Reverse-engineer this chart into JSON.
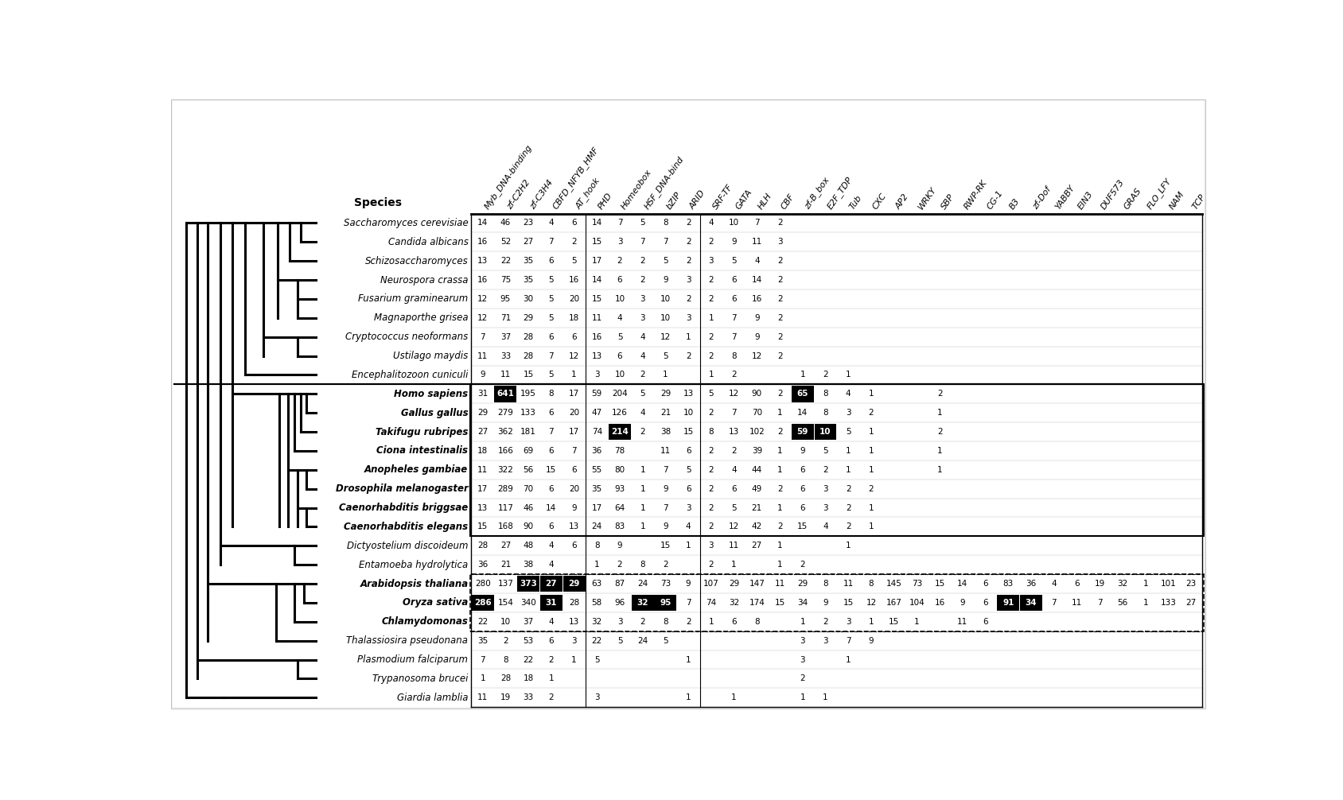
{
  "columns": [
    "Myb_DNA-binding",
    "zf-C2H2",
    "zf-C3H4",
    "CBFD_NFYB_HMF",
    "AT_hook",
    "PHD",
    "Homeobox",
    "HSF_DNA-bind",
    "bZIP",
    "ARID",
    "SRF-TF",
    "GATA",
    "HLH",
    "CBF",
    "zf-B_box",
    "E2F_TDP",
    "Tub",
    "CXC",
    "AP2",
    "WRKY",
    "SBP",
    "RWP-RK",
    "CG-1",
    "B3",
    "zf-Dof",
    "YABBY",
    "EIN3",
    "DUF573",
    "GRAS",
    "FLO_LFY",
    "NAM",
    "TCP"
  ],
  "species": [
    "Saccharomyces cerevisiae",
    "Candida albicans",
    "Schizosaccharomyces",
    "Neurospora crassa",
    "Fusarium graminearum",
    "Magnaporthe grisea",
    "Cryptococcus neoformans",
    "Ustilago maydis",
    "Encephalitozoon cuniculi",
    "Homo sapiens",
    "Gallus gallus",
    "Takifugu rubripes",
    "Ciona intestinalis",
    "Anopheles gambiae",
    "Drosophila melanogaster",
    "Caenorhabditis briggsae",
    "Caenorhabditis elegans",
    "Dictyostelium discoideum",
    "Entamoeba hydrolytica",
    "Arabidopsis thaliana",
    "Oryza sativa",
    "Chlamydomonas",
    "Thalassiosira pseudonana",
    "Plasmodium falciparum",
    "Trypanosoma brucei",
    "Giardia lamblia"
  ],
  "data": {
    "Saccharomyces cerevisiae": [
      14,
      46,
      23,
      4,
      6,
      14,
      7,
      5,
      8,
      2,
      4,
      10,
      7,
      2,
      "",
      "",
      "",
      "",
      "",
      "",
      "",
      "",
      "",
      "",
      "",
      "",
      "",
      "",
      "",
      "",
      "",
      ""
    ],
    "Candida albicans": [
      16,
      52,
      27,
      7,
      2,
      15,
      3,
      7,
      7,
      2,
      2,
      9,
      11,
      3,
      "",
      "",
      "",
      "",
      "",
      "",
      "",
      "",
      "",
      "",
      "",
      "",
      "",
      "",
      "",
      "",
      "",
      ""
    ],
    "Schizosaccharomyces": [
      13,
      22,
      35,
      6,
      5,
      17,
      2,
      2,
      5,
      2,
      3,
      5,
      4,
      2,
      "",
      "",
      "",
      "",
      "",
      "",
      "",
      "",
      "",
      "",
      "",
      "",
      "",
      "",
      "",
      "",
      "",
      ""
    ],
    "Neurospora crassa": [
      16,
      75,
      35,
      5,
      16,
      14,
      6,
      2,
      9,
      3,
      2,
      6,
      14,
      2,
      "",
      "",
      "",
      "",
      "",
      "",
      "",
      "",
      "",
      "",
      "",
      "",
      "",
      "",
      "",
      "",
      "",
      ""
    ],
    "Fusarium graminearum": [
      12,
      95,
      30,
      5,
      20,
      15,
      10,
      3,
      10,
      2,
      2,
      6,
      16,
      2,
      "",
      "",
      "",
      "",
      "",
      "",
      "",
      "",
      "",
      "",
      "",
      "",
      "",
      "",
      "",
      "",
      "",
      ""
    ],
    "Magnaporthe grisea": [
      12,
      71,
      29,
      5,
      18,
      11,
      4,
      3,
      10,
      3,
      1,
      7,
      9,
      2,
      "",
      "",
      "",
      "",
      "",
      "",
      "",
      "",
      "",
      "",
      "",
      "",
      "",
      "",
      "",
      "",
      "",
      ""
    ],
    "Cryptococcus neoformans": [
      7,
      37,
      28,
      6,
      6,
      16,
      5,
      4,
      12,
      1,
      2,
      7,
      9,
      2,
      "",
      "",
      "",
      "",
      "",
      "",
      "",
      "",
      "",
      "",
      "",
      "",
      "",
      "",
      "",
      "",
      "",
      ""
    ],
    "Ustilago maydis": [
      11,
      33,
      28,
      7,
      12,
      13,
      6,
      4,
      5,
      2,
      2,
      8,
      12,
      2,
      "",
      "",
      "",
      "",
      "",
      "",
      "",
      "",
      "",
      "",
      "",
      "",
      "",
      "",
      "",
      "",
      "",
      ""
    ],
    "Encephalitozoon cuniculi": [
      9,
      11,
      15,
      5,
      1,
      3,
      10,
      2,
      1,
      "",
      1,
      2,
      "",
      "",
      1,
      2,
      1,
      "",
      "",
      "",
      "",
      "",
      "",
      "",
      "",
      "",
      "",
      "",
      "",
      "",
      "",
      ""
    ],
    "Homo sapiens": [
      31,
      "641",
      195,
      8,
      17,
      59,
      204,
      5,
      29,
      13,
      5,
      12,
      90,
      2,
      "65",
      8,
      4,
      1,
      "",
      "",
      2,
      "",
      "",
      "",
      "",
      "",
      "",
      "",
      "",
      "",
      "",
      ""
    ],
    "Gallus gallus": [
      29,
      279,
      133,
      6,
      20,
      47,
      126,
      4,
      21,
      10,
      2,
      7,
      70,
      1,
      14,
      8,
      3,
      2,
      "",
      "",
      1,
      "",
      "",
      "",
      "",
      "",
      "",
      "",
      "",
      "",
      "",
      ""
    ],
    "Takifugu rubripes": [
      27,
      362,
      181,
      7,
      17,
      74,
      "214",
      2,
      38,
      "15",
      8,
      13,
      102,
      2,
      59,
      "10",
      5,
      1,
      "",
      "",
      2,
      "",
      "",
      "",
      "",
      "",
      "",
      "",
      "",
      "",
      "",
      ""
    ],
    "Ciona intestinalis": [
      18,
      166,
      69,
      6,
      7,
      36,
      78,
      "",
      11,
      6,
      2,
      2,
      39,
      1,
      9,
      5,
      1,
      1,
      "",
      "",
      1,
      "",
      "",
      "",
      "",
      "",
      "",
      "",
      "",
      "",
      "",
      ""
    ],
    "Anopheles gambiae": [
      11,
      322,
      56,
      15,
      6,
      55,
      80,
      1,
      7,
      5,
      2,
      4,
      44,
      1,
      6,
      2,
      1,
      1,
      "",
      "",
      1,
      "",
      "",
      "",
      "",
      "",
      "",
      "",
      "",
      "",
      "",
      ""
    ],
    "Drosophila melanogaster": [
      17,
      289,
      70,
      6,
      20,
      35,
      93,
      1,
      9,
      6,
      2,
      6,
      49,
      2,
      6,
      3,
      2,
      2,
      "",
      "",
      "",
      "",
      "",
      "",
      "",
      "",
      "",
      "",
      "",
      "",
      "",
      ""
    ],
    "Caenorhabditis briggsae": [
      13,
      117,
      46,
      14,
      9,
      17,
      64,
      1,
      7,
      3,
      2,
      5,
      21,
      1,
      6,
      3,
      2,
      1,
      "",
      "",
      "",
      "",
      "",
      "",
      "",
      "",
      "",
      "",
      "",
      "",
      "",
      ""
    ],
    "Caenorhabditis elegans": [
      15,
      168,
      90,
      6,
      13,
      24,
      83,
      1,
      9,
      4,
      2,
      12,
      42,
      2,
      15,
      4,
      2,
      1,
      "",
      "",
      "",
      "",
      "",
      "",
      "",
      "",
      "",
      "",
      "",
      "",
      "",
      ""
    ],
    "Dictyostelium discoideum": [
      28,
      27,
      48,
      4,
      6,
      8,
      9,
      "",
      15,
      1,
      3,
      11,
      27,
      1,
      "",
      "",
      1,
      "",
      "",
      "",
      "",
      "",
      "",
      "",
      "",
      "",
      "",
      "",
      "",
      "",
      "",
      ""
    ],
    "Entamoeba hydrolytica": [
      36,
      21,
      38,
      4,
      "",
      1,
      2,
      8,
      2,
      "",
      2,
      1,
      "",
      1,
      2,
      "",
      "",
      "",
      "",
      "",
      "",
      "",
      "",
      "",
      "",
      "",
      "",
      "",
      "",
      "",
      "",
      ""
    ],
    "Arabidopsis thaliana": [
      280,
      137,
      "373",
      27,
      29,
      "63",
      87,
      24,
      73,
      9,
      "107",
      29,
      147,
      11,
      29,
      8,
      11,
      8,
      145,
      73,
      15,
      14,
      6,
      83,
      36,
      4,
      6,
      19,
      32,
      1,
      101,
      23
    ],
    "Oryza sativa": [
      "286",
      154,
      340,
      "31",
      28,
      58,
      96,
      "32",
      "95",
      7,
      74,
      "32",
      "174",
      15,
      34,
      9,
      "15",
      "12",
      167,
      104,
      16,
      9,
      "6",
      "91",
      34,
      7,
      11,
      7,
      56,
      1,
      133,
      27
    ],
    "Chlamydomonas": [
      22,
      10,
      37,
      4,
      13,
      32,
      3,
      2,
      8,
      2,
      1,
      6,
      8,
      "",
      1,
      2,
      3,
      1,
      15,
      1,
      "",
      11,
      6,
      "",
      "",
      "",
      "",
      "",
      "",
      "",
      "",
      ""
    ],
    "Thalassiosira pseudonana": [
      35,
      2,
      53,
      6,
      3,
      22,
      5,
      24,
      5,
      "",
      "",
      "",
      "",
      "",
      3,
      3,
      7,
      9,
      "",
      "",
      "",
      "",
      "",
      "",
      "",
      "",
      "",
      "",
      "",
      "",
      "",
      ""
    ],
    "Plasmodium falciparum": [
      7,
      8,
      22,
      2,
      1,
      5,
      "",
      "",
      "",
      1,
      "",
      "",
      "",
      "",
      3,
      "",
      1,
      "",
      "",
      "",
      "",
      "",
      "",
      "",
      "",
      "",
      "",
      "",
      "",
      "",
      "",
      ""
    ],
    "Trypanosoma brucei": [
      1,
      28,
      18,
      1,
      "",
      "",
      "",
      "",
      "",
      "",
      "",
      "",
      "",
      "",
      2,
      "",
      "",
      "",
      "",
      "",
      "",
      "",
      "",
      "",
      "",
      "",
      "",
      "",
      "",
      "",
      "",
      ""
    ],
    "Giardia lamblia": [
      11,
      19,
      33,
      2,
      "",
      3,
      "",
      "",
      "",
      1,
      "",
      1,
      "",
      "",
      1,
      1,
      "",
      "",
      "",
      "",
      "",
      "",
      "",
      "",
      "",
      "",
      "",
      "",
      "",
      "",
      "",
      ""
    ]
  },
  "highlighted_cells": {
    "Homo sapiens": {
      "zf-C2H2": true,
      "zf-B_box": true
    },
    "Takifugu rubripes": {
      "Homeobox": true,
      "zf-B_box": true,
      "E2F_TDP": true
    },
    "Arabidopsis thaliana": {
      "zf-C3H4": true,
      "AT_hook": true,
      "CBFD_NFYB_HMF": true
    },
    "Oryza sativa": {
      "Myb_DNA-binding": true,
      "CBFD_NFYB_HMF": true,
      "HSF_DNA-bind": true,
      "bZIP": true,
      "B3": true,
      "zf-Dof": true
    }
  },
  "animal_box_species": [
    "Homo sapiens",
    "Gallus gallus",
    "Takifugu rubripes",
    "Ciona intestinalis",
    "Anopheles gambiae",
    "Drosophila melanogaster",
    "Caenorhabditis briggsae",
    "Caenorhabditis elegans"
  ],
  "plant_box_species": [
    "Arabidopsis thaliana",
    "Oryza sativa",
    "Chlamydomonas"
  ]
}
